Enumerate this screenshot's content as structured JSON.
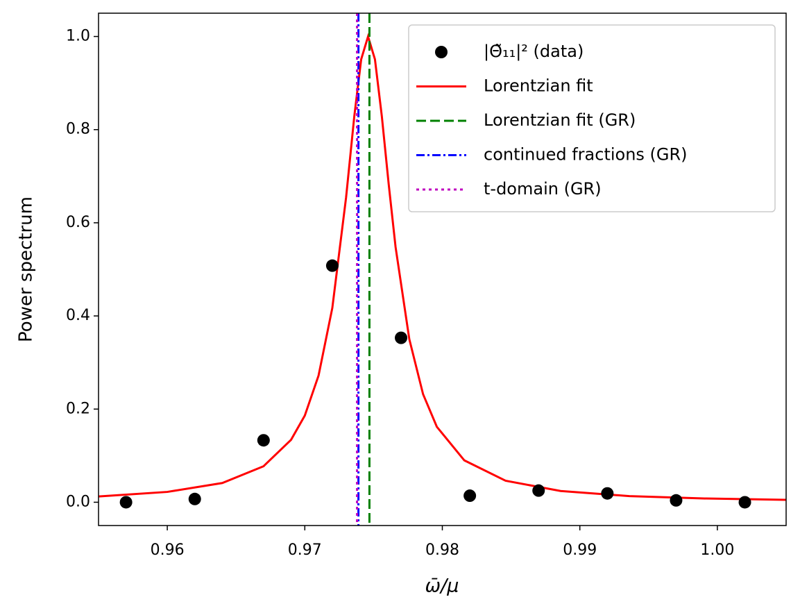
{
  "chart_data": {
    "type": "line",
    "xlabel": "ω̄/μ",
    "ylabel": "Power spectrum",
    "xlim": [
      0.955,
      1.005
    ],
    "ylim": [
      -0.05,
      1.05
    ],
    "xticks": [
      0.96,
      0.97,
      0.98,
      0.99,
      {
        "value": 1.0,
        "label": "1.00"
      }
    ],
    "yticks": [
      {
        "value": 0,
        "label": "0.0"
      },
      0.2,
      0.4,
      0.6,
      0.8,
      {
        "value": 1.0,
        "label": "1.0"
      }
    ],
    "legend": "upper right",
    "series": [
      {
        "name": "|Θ̃₁₁|² (data)",
        "color": "#000000",
        "style": "marker",
        "x": [
          0.957,
          0.962,
          0.967,
          0.972,
          0.977,
          0.982,
          0.987,
          0.992,
          0.997,
          1.002
        ],
        "values": [
          0,
          0.007,
          0.133,
          0.508,
          0.353,
          0.014,
          0.025,
          0.019,
          0.004,
          0
        ]
      },
      {
        "name": "Lorentzian fit",
        "color": "#ff0000",
        "style": "solid",
        "x": [
          0.955,
          0.96,
          0.964,
          0.967,
          0.969,
          0.97,
          0.971,
          0.972,
          0.973,
          0.9731,
          0.9736,
          0.9741,
          0.9746,
          0.9751,
          0.9756,
          0.9761,
          0.9766,
          0.9776,
          0.9786,
          0.9796,
          0.9816,
          0.9846,
          0.9886,
          0.9936,
          0.999,
          1.005
        ],
        "values": [
          0.0124,
          0.0222,
          0.0413,
          0.0773,
          0.134,
          0.186,
          0.272,
          0.417,
          0.654,
          0.683,
          0.829,
          0.951,
          1,
          0.951,
          0.829,
          0.683,
          0.548,
          0.35,
          0.232,
          0.162,
          0.0899,
          0.0462,
          0.0241,
          0.0132,
          0.0081,
          0.0052
        ]
      },
      {
        "name": "Lorentzian fit (GR)",
        "color": "#008000",
        "style": "dashed",
        "vline": 0.9747
      },
      {
        "name": "continued fractions (GR)",
        "color": "#0000ff",
        "style": "dashdot",
        "vline": 0.9739
      },
      {
        "name": "t-domain (GR)",
        "color": "#bf00bf",
        "style": "dotted",
        "vline": 0.9738
      }
    ]
  }
}
